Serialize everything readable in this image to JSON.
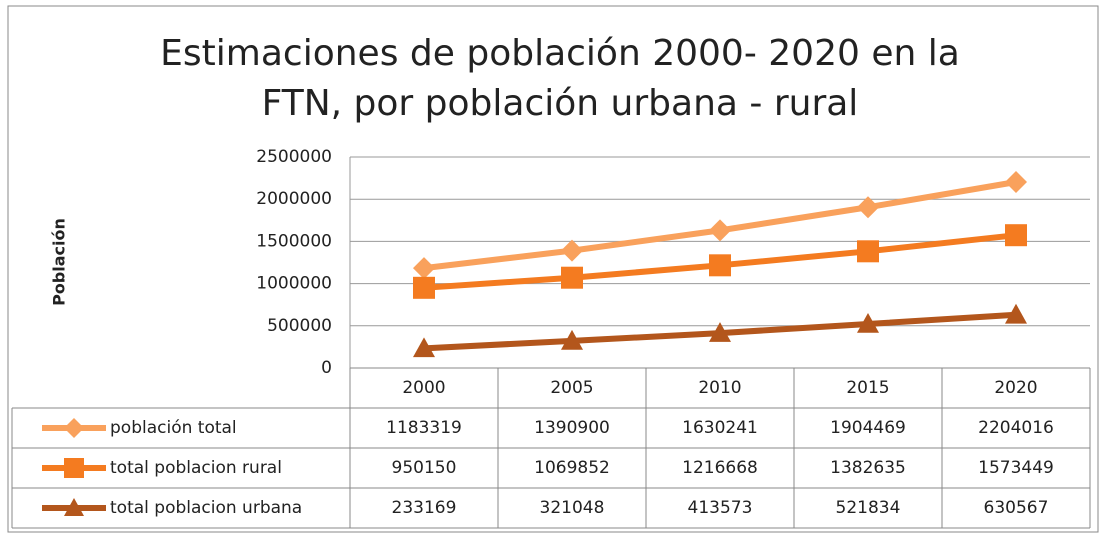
{
  "chart_data": {
    "type": "line",
    "title": "Estimaciones de población 2000- 2020 en la FTN, por población urbana - rural",
    "y_label": "Población",
    "categories": [
      "2000",
      "2005",
      "2010",
      "2015",
      "2020"
    ],
    "series": [
      {
        "name": "población total",
        "color": "#f9a15c",
        "marker": "diamond",
        "values": [
          1183319,
          1390900,
          1630241,
          1904469,
          2204016
        ]
      },
      {
        "name": "total poblacion rural",
        "color": "#f47b20",
        "marker": "square",
        "values": [
          950150,
          1069852,
          1216668,
          1382635,
          1573449
        ]
      },
      {
        "name": "total poblacion urbana",
        "color": "#b3561c",
        "marker": "triangle",
        "values": [
          233169,
          321048,
          413573,
          521834,
          630567
        ]
      }
    ],
    "ylim": [
      0,
      2500000
    ],
    "yticks": [
      0,
      500000,
      1000000,
      1500000,
      2000000,
      2500000
    ],
    "grid": true
  }
}
